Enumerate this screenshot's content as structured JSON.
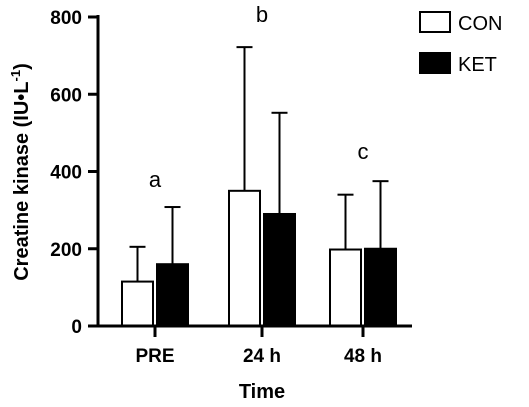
{
  "chart_data": {
    "type": "bar",
    "categories": [
      "PRE",
      "24 h",
      "48 h"
    ],
    "series": [
      {
        "name": "CON",
        "values": [
          115,
          350,
          198
        ],
        "errors": [
          90,
          372,
          142
        ],
        "fill": "#ffffff"
      },
      {
        "name": "KET",
        "values": [
          160,
          290,
          200
        ],
        "errors": [
          148,
          262,
          175
        ],
        "fill": "#000000"
      }
    ],
    "annotations": [
      "a",
      "b",
      "c"
    ],
    "xlabel": "Time",
    "ylabel_main": "Creatine kinase (IU",
    "ylabel_dot": "•",
    "ylabel_l": "L",
    "ylabel_sup": "-1",
    "ylabel_close": ")",
    "ylim": [
      0,
      800
    ],
    "yticks": [
      "0",
      "200",
      "400",
      "600",
      "800"
    ],
    "grid": false,
    "legend": "top-right"
  }
}
